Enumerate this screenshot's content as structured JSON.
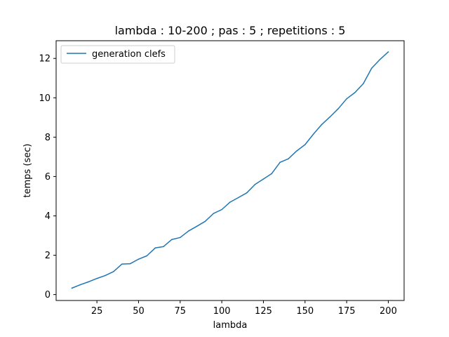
{
  "chart_data": {
    "type": "line",
    "title": "lambda : 10-200 ; pas : 5 ; repetitions : 5",
    "xlabel": "lambda",
    "ylabel": "temps (sec)",
    "xlim": [
      0.5,
      209.5
    ],
    "ylim": [
      -0.3,
      12.9
    ],
    "xticks": [
      25,
      50,
      75,
      100,
      125,
      150,
      175,
      200
    ],
    "yticks": [
      0,
      2,
      4,
      6,
      8,
      10,
      12
    ],
    "grid": false,
    "legend_position": "upper left",
    "series": [
      {
        "name": "generation clefs",
        "color": "#1f77b4",
        "x": [
          10,
          15,
          20,
          25,
          30,
          35,
          40,
          45,
          50,
          55,
          60,
          65,
          70,
          75,
          80,
          85,
          90,
          95,
          100,
          105,
          110,
          115,
          120,
          125,
          130,
          135,
          140,
          145,
          150,
          155,
          160,
          165,
          170,
          175,
          180,
          185,
          190,
          195,
          200
        ],
        "y": [
          0.33,
          0.5,
          0.65,
          0.82,
          0.97,
          1.17,
          1.55,
          1.57,
          1.8,
          1.97,
          2.37,
          2.44,
          2.8,
          2.9,
          3.23,
          3.47,
          3.72,
          4.12,
          4.32,
          4.7,
          4.93,
          5.17,
          5.6,
          5.87,
          6.15,
          6.72,
          6.9,
          7.3,
          7.62,
          8.15,
          8.64,
          9.03,
          9.45,
          9.95,
          10.27,
          10.72,
          11.5,
          11.95,
          12.33
        ]
      }
    ]
  }
}
